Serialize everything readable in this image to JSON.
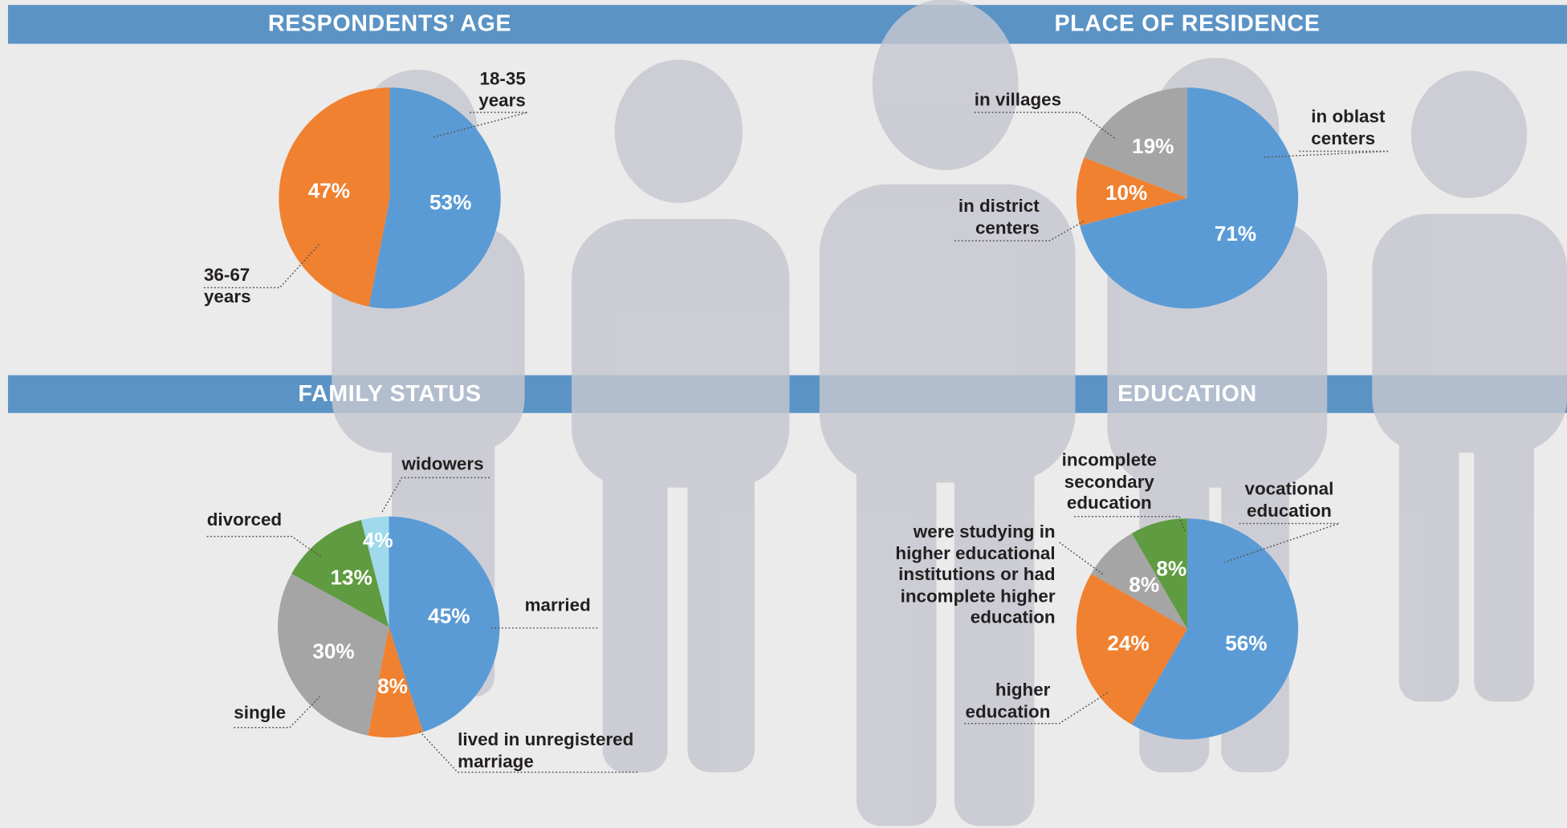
{
  "chart_data": [
    {
      "type": "pie",
      "title": "RESPONDENTS’ AGE",
      "categories": [
        "18-35\nyears",
        "36-67\nyears"
      ],
      "values": [
        53,
        47
      ],
      "value_labels": [
        "53%",
        "47%"
      ],
      "colors": [
        "#5b9bd5",
        "#f08130"
      ]
    },
    {
      "type": "pie",
      "title": "PLACE OF RESIDENCE",
      "categories": [
        "in oblast\ncenters",
        "in district\ncenters",
        "in villages"
      ],
      "values": [
        71,
        10,
        19
      ],
      "value_labels": [
        "71%",
        "10%",
        "19%"
      ],
      "colors": [
        "#5b9bd5",
        "#f08130",
        "#a5a5a5"
      ]
    },
    {
      "type": "pie",
      "title": "FAMILY STATUS",
      "categories": [
        "married",
        "lived in unregistered\nmarriage",
        "single",
        "divorced",
        "widowers"
      ],
      "values": [
        45,
        8,
        30,
        13,
        4
      ],
      "value_labels": [
        "45%",
        "8%",
        "30%",
        "13%",
        "4%"
      ],
      "colors": [
        "#5b9bd5",
        "#f08130",
        "#a5a5a5",
        "#5f9b40",
        "#9fd9eb"
      ]
    },
    {
      "type": "pie",
      "title": "EDUCATION",
      "categories": [
        "vocational\neducation",
        "higher\neducation",
        "were studying in\nhigher educational\ninstitutions or had\nincomplete higher\neducation",
        "incomplete\nsecondary\neducation"
      ],
      "values": [
        56,
        24,
        8,
        8
      ],
      "value_labels": [
        "56%",
        "24%",
        "8%",
        "8%"
      ],
      "colors": [
        "#5b9bd5",
        "#f08130",
        "#a5a5a5",
        "#5f9b40"
      ]
    }
  ]
}
